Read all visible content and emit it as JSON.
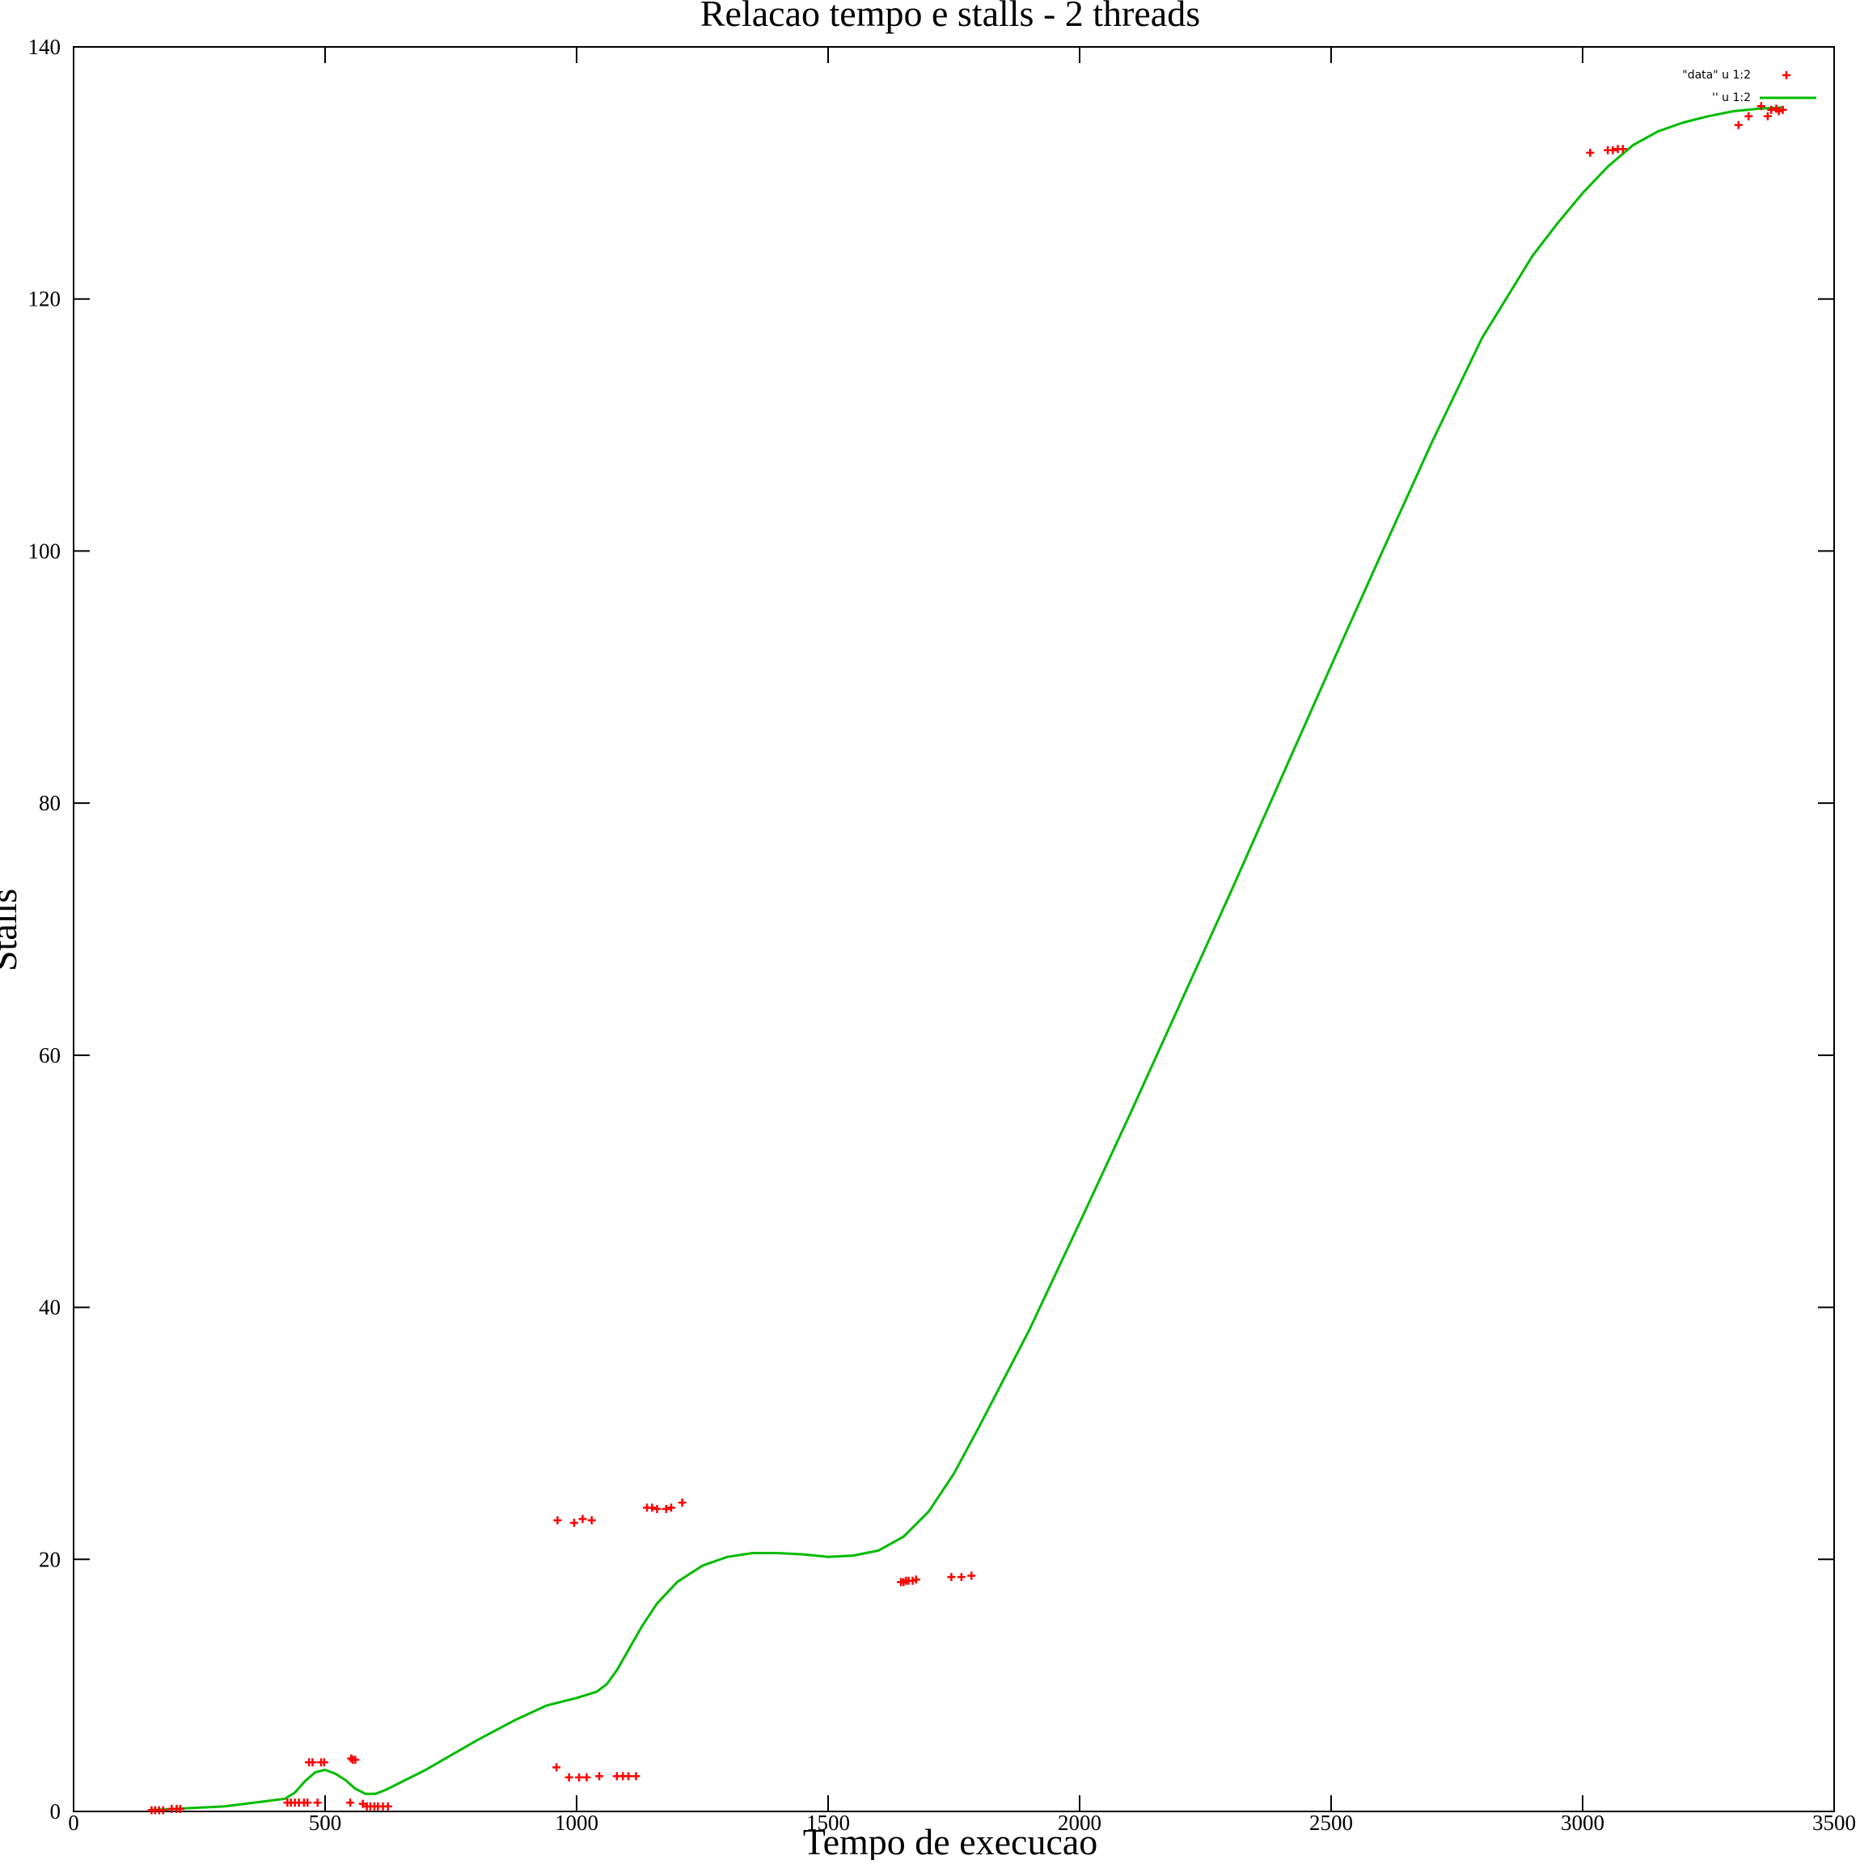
{
  "chart_data": {
    "type": "scatter",
    "title": "Relacao tempo e stalls - 2 threads",
    "xlabel": "Tempo de execucao",
    "ylabel": "Stalls",
    "xlim": [
      0,
      3500
    ],
    "ylim": [
      0,
      140
    ],
    "xticks": [
      0,
      500,
      1000,
      1500,
      2000,
      2500,
      3000,
      3500
    ],
    "yticks": [
      0,
      20,
      40,
      60,
      80,
      100,
      120,
      140
    ],
    "grid": false,
    "legend_position": "top-right",
    "colors": {
      "points": "#ff0000",
      "line": "#00bb00",
      "axes": "#000000"
    },
    "series": [
      {
        "name": "\"data\" u 1:2",
        "style": "points",
        "marker": "plus",
        "x": [
          155,
          162,
          170,
          178,
          195,
          205,
          212,
          425,
          432,
          440,
          448,
          458,
          465,
          468,
          475,
          485,
          492,
          498,
          550,
          555,
          560,
          552,
          575,
          583,
          590,
          598,
          605,
          615,
          625,
          960,
          962,
          985,
          995,
          1005,
          1012,
          1020,
          1030,
          1045,
          1080,
          1092,
          1103,
          1118,
          1140,
          1150,
          1160,
          1178,
          1188,
          1210,
          1645,
          1650,
          1655,
          1660,
          1668,
          1675,
          1745,
          1765,
          1785,
          3015,
          3050,
          3060,
          3070,
          3080,
          3310,
          3330,
          3355,
          3368,
          3375,
          3385,
          3390,
          3398
        ],
        "y": [
          0.1,
          0.1,
          0.1,
          0.1,
          0.2,
          0.2,
          0.2,
          0.7,
          0.7,
          0.7,
          0.7,
          0.7,
          0.7,
          3.9,
          3.9,
          0.7,
          3.9,
          3.9,
          0.7,
          4.1,
          4.1,
          4.2,
          0.6,
          0.4,
          0.4,
          0.4,
          0.4,
          0.4,
          0.4,
          3.5,
          23.1,
          2.7,
          22.9,
          2.7,
          23.2,
          2.7,
          23.1,
          2.8,
          2.8,
          2.8,
          2.8,
          2.8,
          24.1,
          24.1,
          24.0,
          24.0,
          24.1,
          24.5,
          18.2,
          18.2,
          18.3,
          18.3,
          18.3,
          18.4,
          18.6,
          18.6,
          18.7,
          131.6,
          131.8,
          131.8,
          131.9,
          131.9,
          133.8,
          134.5,
          135.3,
          134.5,
          135.0,
          135.1,
          134.9,
          135.0
        ]
      },
      {
        "name": "'' u 1:2",
        "style": "line",
        "x": [
          150,
          300,
          420,
          440,
          460,
          480,
          500,
          520,
          540,
          560,
          580,
          600,
          620,
          700,
          800,
          880,
          940,
          1000,
          1040,
          1060,
          1080,
          1100,
          1130,
          1160,
          1200,
          1250,
          1300,
          1350,
          1400,
          1450,
          1500,
          1550,
          1600,
          1650,
          1700,
          1750,
          1800,
          1900,
          2000,
          2100,
          2200,
          2300,
          2400,
          2500,
          2600,
          2700,
          2800,
          2900,
          2950,
          3000,
          3050,
          3100,
          3150,
          3200,
          3250,
          3300,
          3350,
          3400
        ],
        "y": [
          0.1,
          0.4,
          1.0,
          1.5,
          2.4,
          3.1,
          3.3,
          3.0,
          2.5,
          1.8,
          1.4,
          1.4,
          1.7,
          3.3,
          5.6,
          7.3,
          8.4,
          9.0,
          9.5,
          10.1,
          11.2,
          12.6,
          14.7,
          16.5,
          18.2,
          19.5,
          20.2,
          20.5,
          20.5,
          20.4,
          20.2,
          20.3,
          20.7,
          21.8,
          23.8,
          26.8,
          30.5,
          38.2,
          46.7,
          55.3,
          64.1,
          72.9,
          81.9,
          90.9,
          99.8,
          108.6,
          116.9,
          123.4,
          126.0,
          128.4,
          130.5,
          132.2,
          133.3,
          134.0,
          134.5,
          134.9,
          135.1,
          135.2
        ]
      }
    ]
  }
}
